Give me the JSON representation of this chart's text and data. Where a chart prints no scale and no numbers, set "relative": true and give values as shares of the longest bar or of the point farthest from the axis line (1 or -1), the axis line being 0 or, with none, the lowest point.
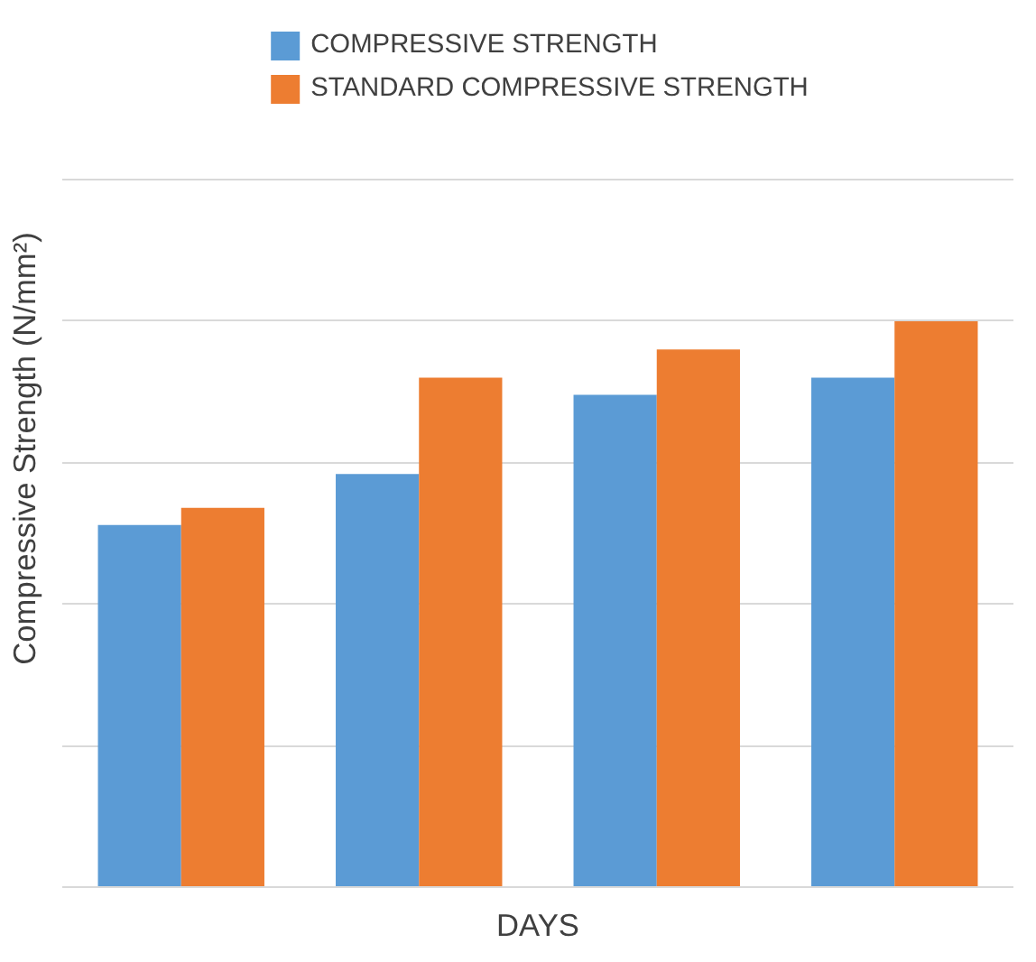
{
  "chart_data": {
    "type": "bar",
    "relative": true,
    "xlabel": "DAYS",
    "ylabel": "Compressive Strength (N/mm²)",
    "categories": [
      null,
      null,
      null,
      null
    ],
    "series": [
      {
        "name": "COMPRESSIVE STRENGTH",
        "color": "#5b9bd5",
        "values": [
          0.64,
          0.73,
          0.87,
          0.9
        ]
      },
      {
        "name": "STANDARD COMPRESSIVE STRENGTH",
        "color": "#ed7d31",
        "values": [
          0.67,
          0.9,
          0.95,
          1
        ]
      }
    ],
    "grid": "y",
    "legend": "top"
  }
}
